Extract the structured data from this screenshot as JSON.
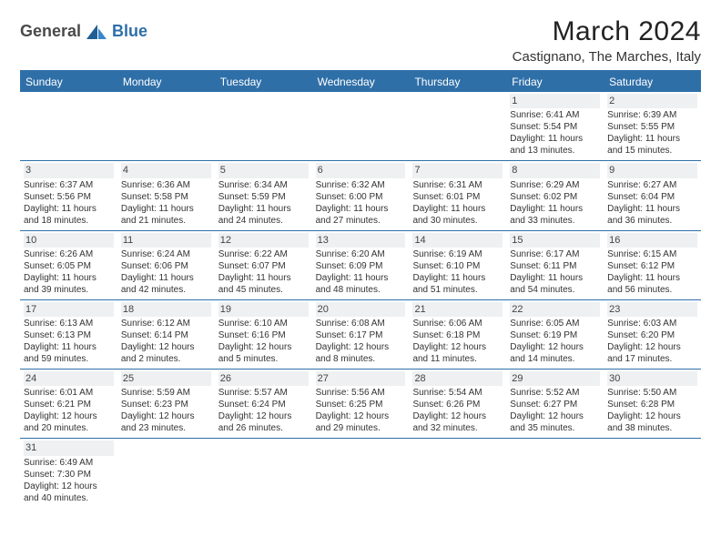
{
  "logo": {
    "textA": "General",
    "textB": "Blue"
  },
  "title": "March 2024",
  "location": "Castignano, The Marches, Italy",
  "colors": {
    "header_bg": "#2f6fa8",
    "header_text": "#ffffff",
    "daynum_bg": "#eef0f2",
    "border": "#2f6fa8",
    "body_text": "#333333",
    "title_text": "#222222"
  },
  "dayHeaders": [
    "Sunday",
    "Monday",
    "Tuesday",
    "Wednesday",
    "Thursday",
    "Friday",
    "Saturday"
  ],
  "weeks": [
    [
      {
        "empty": true
      },
      {
        "empty": true
      },
      {
        "empty": true
      },
      {
        "empty": true
      },
      {
        "empty": true
      },
      {
        "day": "1",
        "sunrise": "Sunrise: 6:41 AM",
        "sunset": "Sunset: 5:54 PM",
        "dayl1": "Daylight: 11 hours",
        "dayl2": "and 13 minutes."
      },
      {
        "day": "2",
        "sunrise": "Sunrise: 6:39 AM",
        "sunset": "Sunset: 5:55 PM",
        "dayl1": "Daylight: 11 hours",
        "dayl2": "and 15 minutes."
      }
    ],
    [
      {
        "day": "3",
        "sunrise": "Sunrise: 6:37 AM",
        "sunset": "Sunset: 5:56 PM",
        "dayl1": "Daylight: 11 hours",
        "dayl2": "and 18 minutes."
      },
      {
        "day": "4",
        "sunrise": "Sunrise: 6:36 AM",
        "sunset": "Sunset: 5:58 PM",
        "dayl1": "Daylight: 11 hours",
        "dayl2": "and 21 minutes."
      },
      {
        "day": "5",
        "sunrise": "Sunrise: 6:34 AM",
        "sunset": "Sunset: 5:59 PM",
        "dayl1": "Daylight: 11 hours",
        "dayl2": "and 24 minutes."
      },
      {
        "day": "6",
        "sunrise": "Sunrise: 6:32 AM",
        "sunset": "Sunset: 6:00 PM",
        "dayl1": "Daylight: 11 hours",
        "dayl2": "and 27 minutes."
      },
      {
        "day": "7",
        "sunrise": "Sunrise: 6:31 AM",
        "sunset": "Sunset: 6:01 PM",
        "dayl1": "Daylight: 11 hours",
        "dayl2": "and 30 minutes."
      },
      {
        "day": "8",
        "sunrise": "Sunrise: 6:29 AM",
        "sunset": "Sunset: 6:02 PM",
        "dayl1": "Daylight: 11 hours",
        "dayl2": "and 33 minutes."
      },
      {
        "day": "9",
        "sunrise": "Sunrise: 6:27 AM",
        "sunset": "Sunset: 6:04 PM",
        "dayl1": "Daylight: 11 hours",
        "dayl2": "and 36 minutes."
      }
    ],
    [
      {
        "day": "10",
        "sunrise": "Sunrise: 6:26 AM",
        "sunset": "Sunset: 6:05 PM",
        "dayl1": "Daylight: 11 hours",
        "dayl2": "and 39 minutes."
      },
      {
        "day": "11",
        "sunrise": "Sunrise: 6:24 AM",
        "sunset": "Sunset: 6:06 PM",
        "dayl1": "Daylight: 11 hours",
        "dayl2": "and 42 minutes."
      },
      {
        "day": "12",
        "sunrise": "Sunrise: 6:22 AM",
        "sunset": "Sunset: 6:07 PM",
        "dayl1": "Daylight: 11 hours",
        "dayl2": "and 45 minutes."
      },
      {
        "day": "13",
        "sunrise": "Sunrise: 6:20 AM",
        "sunset": "Sunset: 6:09 PM",
        "dayl1": "Daylight: 11 hours",
        "dayl2": "and 48 minutes."
      },
      {
        "day": "14",
        "sunrise": "Sunrise: 6:19 AM",
        "sunset": "Sunset: 6:10 PM",
        "dayl1": "Daylight: 11 hours",
        "dayl2": "and 51 minutes."
      },
      {
        "day": "15",
        "sunrise": "Sunrise: 6:17 AM",
        "sunset": "Sunset: 6:11 PM",
        "dayl1": "Daylight: 11 hours",
        "dayl2": "and 54 minutes."
      },
      {
        "day": "16",
        "sunrise": "Sunrise: 6:15 AM",
        "sunset": "Sunset: 6:12 PM",
        "dayl1": "Daylight: 11 hours",
        "dayl2": "and 56 minutes."
      }
    ],
    [
      {
        "day": "17",
        "sunrise": "Sunrise: 6:13 AM",
        "sunset": "Sunset: 6:13 PM",
        "dayl1": "Daylight: 11 hours",
        "dayl2": "and 59 minutes."
      },
      {
        "day": "18",
        "sunrise": "Sunrise: 6:12 AM",
        "sunset": "Sunset: 6:14 PM",
        "dayl1": "Daylight: 12 hours",
        "dayl2": "and 2 minutes."
      },
      {
        "day": "19",
        "sunrise": "Sunrise: 6:10 AM",
        "sunset": "Sunset: 6:16 PM",
        "dayl1": "Daylight: 12 hours",
        "dayl2": "and 5 minutes."
      },
      {
        "day": "20",
        "sunrise": "Sunrise: 6:08 AM",
        "sunset": "Sunset: 6:17 PM",
        "dayl1": "Daylight: 12 hours",
        "dayl2": "and 8 minutes."
      },
      {
        "day": "21",
        "sunrise": "Sunrise: 6:06 AM",
        "sunset": "Sunset: 6:18 PM",
        "dayl1": "Daylight: 12 hours",
        "dayl2": "and 11 minutes."
      },
      {
        "day": "22",
        "sunrise": "Sunrise: 6:05 AM",
        "sunset": "Sunset: 6:19 PM",
        "dayl1": "Daylight: 12 hours",
        "dayl2": "and 14 minutes."
      },
      {
        "day": "23",
        "sunrise": "Sunrise: 6:03 AM",
        "sunset": "Sunset: 6:20 PM",
        "dayl1": "Daylight: 12 hours",
        "dayl2": "and 17 minutes."
      }
    ],
    [
      {
        "day": "24",
        "sunrise": "Sunrise: 6:01 AM",
        "sunset": "Sunset: 6:21 PM",
        "dayl1": "Daylight: 12 hours",
        "dayl2": "and 20 minutes."
      },
      {
        "day": "25",
        "sunrise": "Sunrise: 5:59 AM",
        "sunset": "Sunset: 6:23 PM",
        "dayl1": "Daylight: 12 hours",
        "dayl2": "and 23 minutes."
      },
      {
        "day": "26",
        "sunrise": "Sunrise: 5:57 AM",
        "sunset": "Sunset: 6:24 PM",
        "dayl1": "Daylight: 12 hours",
        "dayl2": "and 26 minutes."
      },
      {
        "day": "27",
        "sunrise": "Sunrise: 5:56 AM",
        "sunset": "Sunset: 6:25 PM",
        "dayl1": "Daylight: 12 hours",
        "dayl2": "and 29 minutes."
      },
      {
        "day": "28",
        "sunrise": "Sunrise: 5:54 AM",
        "sunset": "Sunset: 6:26 PM",
        "dayl1": "Daylight: 12 hours",
        "dayl2": "and 32 minutes."
      },
      {
        "day": "29",
        "sunrise": "Sunrise: 5:52 AM",
        "sunset": "Sunset: 6:27 PM",
        "dayl1": "Daylight: 12 hours",
        "dayl2": "and 35 minutes."
      },
      {
        "day": "30",
        "sunrise": "Sunrise: 5:50 AM",
        "sunset": "Sunset: 6:28 PM",
        "dayl1": "Daylight: 12 hours",
        "dayl2": "and 38 minutes."
      }
    ],
    [
      {
        "day": "31",
        "sunrise": "Sunrise: 6:49 AM",
        "sunset": "Sunset: 7:30 PM",
        "dayl1": "Daylight: 12 hours",
        "dayl2": "and 40 minutes."
      },
      {
        "empty": true
      },
      {
        "empty": true
      },
      {
        "empty": true
      },
      {
        "empty": true
      },
      {
        "empty": true
      },
      {
        "empty": true
      }
    ]
  ]
}
